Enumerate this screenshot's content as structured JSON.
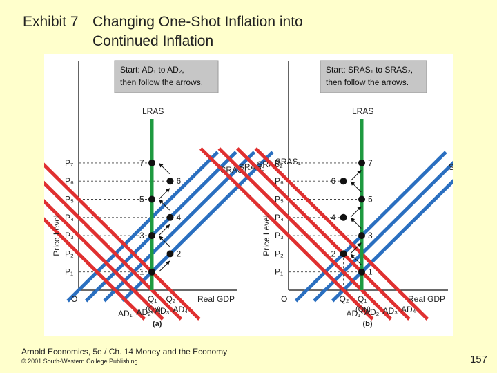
{
  "slide": {
    "exhibit": "Exhibit 7",
    "title_line1": "Changing One-Shot Inflation into",
    "title_line2": "Continued Inflation",
    "footer_line1": "Arnold Economics, 5e / Ch. 14 Money and the Economy",
    "footer_line2": "© 2001 South-Western College Publishing",
    "page_number": "157"
  },
  "colors": {
    "background": "#ffffcc",
    "ad_curve": "#e03030",
    "sras_curve": "#2a6fc0",
    "lras_curve": "#1e9a40",
    "box_fill": "#c6c6c6"
  },
  "chart_data": [
    {
      "type": "line",
      "panel_label": "(a)",
      "box_line1": "Start: AD₁ to AD₂,",
      "box_line2": "then follow the arrows.",
      "xlabel": "Real GDP",
      "ylabel": "Price Level",
      "origin_label": "O",
      "xlim": [
        0,
        10
      ],
      "ylim": [
        0,
        11
      ],
      "x_ticks": [
        {
          "label": "Q₁",
          "sub": "(Qɴ)",
          "x": 4
        },
        {
          "label": "Q₂",
          "x": 5
        }
      ],
      "y_ticks": [
        "P₁",
        "P₂",
        "P₃",
        "P₄",
        "P₅",
        "P₆",
        "P₇"
      ],
      "lras": {
        "label": "LRAS",
        "x": 4
      },
      "ad": [
        {
          "label": "AD₁",
          "x_at_p0": 2
        },
        {
          "label": "AD₂",
          "x_at_p0": 3
        },
        {
          "label": "AD₃",
          "x_at_p0": 4
        },
        {
          "label": "AD₄",
          "x_at_p0": 5
        }
      ],
      "sras": [
        {
          "label": "SRAS₁",
          "x_at_p0": 3
        },
        {
          "label": "SRAS₂",
          "x_at_p0": 2
        },
        {
          "label": "SRAS₃",
          "x_at_p0": 1
        },
        {
          "label": "SRAS₄",
          "x_at_p0": 0
        }
      ],
      "points": [
        {
          "label": "1",
          "x": 4,
          "y": 1
        },
        {
          "label": "2",
          "x": 5,
          "y": 2
        },
        {
          "label": "3",
          "x": 4,
          "y": 3
        },
        {
          "label": "4",
          "x": 5,
          "y": 4
        },
        {
          "label": "5",
          "x": 4,
          "y": 5
        },
        {
          "label": "6",
          "x": 5,
          "y": 6
        },
        {
          "label": "7",
          "x": 4,
          "y": 7
        }
      ]
    },
    {
      "type": "line",
      "panel_label": "(b)",
      "box_line1": "Start: SRAS₁ to SRAS₂,",
      "box_line2": "then follow the arrows.",
      "xlabel": "Real GDP",
      "ylabel": "Price Level",
      "origin_label": "O",
      "xlim": [
        0,
        10
      ],
      "ylim": [
        0,
        11
      ],
      "x_ticks": [
        {
          "label": "Q₂",
          "x": 3
        },
        {
          "label": "Q₁",
          "sub": "(Qɴ)",
          "x": 4
        }
      ],
      "y_ticks": [
        "P₁",
        "P₂",
        "P₃",
        "P₄",
        "P₅",
        "P₆",
        "P₇"
      ],
      "lras": {
        "label": "LRAS",
        "x": 4
      },
      "ad": [
        {
          "label": "AD₁",
          "x_at_p0": 3
        },
        {
          "label": "AD₂",
          "x_at_p0": 4
        },
        {
          "label": "AD₃",
          "x_at_p0": 5
        },
        {
          "label": "AD₄",
          "x_at_p0": 6
        }
      ],
      "sras": [
        {
          "label": "SRAS₁",
          "x_at_p0": 3
        },
        {
          "label": "SRAS₂",
          "x_at_p0": 2
        },
        {
          "label": "SRAS₃",
          "x_at_p0": 1
        }
      ],
      "points": [
        {
          "label": "1",
          "x": 4,
          "y": 1
        },
        {
          "label": "2",
          "x": 3,
          "y": 2
        },
        {
          "label": "3",
          "x": 4,
          "y": 3
        },
        {
          "label": "4",
          "x": 3,
          "y": 4
        },
        {
          "label": "5",
          "x": 4,
          "y": 5
        },
        {
          "label": "6",
          "x": 3,
          "y": 6
        },
        {
          "label": "7",
          "x": 4,
          "y": 7
        }
      ]
    }
  ]
}
